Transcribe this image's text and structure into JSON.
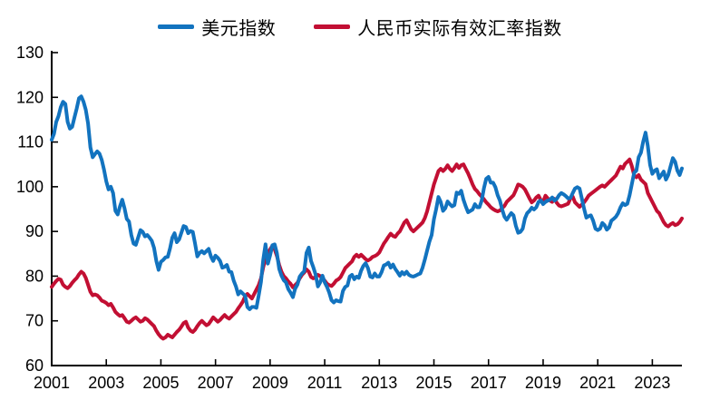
{
  "figure": {
    "background": "#ffffff"
  },
  "legend": {
    "position": "top-center",
    "entries": [
      {
        "label": "美元指数",
        "color": "#1273bf"
      },
      {
        "label": "人民币实际有效汇率指数",
        "color": "#c20f33"
      }
    ]
  },
  "axes": {
    "y_tick_labels": [
      "60",
      "70",
      "80",
      "90",
      "100",
      "110",
      "120",
      "130"
    ],
    "x_tick_labels": [
      "2001",
      "2003",
      "2005",
      "2007",
      "2009",
      "2011",
      "2013",
      "2015",
      "2017",
      "2019",
      "2021",
      "2023"
    ]
  },
  "chart_data": {
    "type": "line",
    "title": "",
    "xlabel": "",
    "ylabel": "",
    "frequency": "monthly",
    "x_start": "2001-01",
    "x_end": "2024-02",
    "ylim": [
      60,
      130
    ],
    "y_ticks": [
      60,
      70,
      80,
      90,
      100,
      110,
      120,
      130
    ],
    "x_tick_years": [
      2001,
      2003,
      2005,
      2007,
      2009,
      2011,
      2013,
      2015,
      2017,
      2019,
      2021,
      2023
    ],
    "grid": false,
    "legend_position": "top-center",
    "series": [
      {
        "name": "美元指数",
        "color": "#1273bf",
        "values": [
          110.5,
          111.8,
          114.5,
          115.8,
          117.8,
          119.0,
          118.5,
          114.5,
          113.0,
          113.4,
          115.5,
          117.5,
          119.8,
          120.2,
          119.0,
          117.2,
          114.2,
          108.8,
          106.6,
          107.3,
          107.9,
          107.4,
          106.0,
          103.8,
          101.2,
          99.4,
          100.0,
          98.6,
          94.6,
          93.8,
          95.6,
          97.1,
          95.2,
          92.8,
          92.2,
          89.2,
          87.3,
          87.0,
          88.6,
          90.3,
          89.9,
          88.9,
          89.2,
          88.6,
          87.9,
          86.3,
          83.4,
          81.4,
          83.2,
          83.6,
          84.2,
          84.3,
          86.2,
          88.6,
          89.6,
          87.6,
          88.2,
          89.7,
          91.2,
          91.0,
          89.6,
          90.1,
          89.9,
          87.3,
          84.4,
          85.2,
          85.6,
          85.1,
          85.6,
          86.1,
          84.4,
          83.4,
          84.6,
          84.1,
          83.4,
          81.9,
          82.1,
          82.5,
          81.0,
          80.9,
          79.0,
          77.7,
          75.9,
          76.6,
          76.1,
          75.6,
          73.1,
          72.6,
          73.1,
          73.1,
          72.9,
          75.7,
          78.7,
          83.7,
          87.1,
          82.8,
          84.7,
          86.9,
          87.1,
          85.1,
          81.6,
          80.1,
          79.1,
          78.6,
          77.1,
          76.3,
          75.3,
          77.2,
          78.1,
          79.9,
          80.6,
          81.1,
          85.2,
          86.4,
          83.4,
          82.0,
          80.4,
          77.7,
          78.6,
          80.1,
          78.6,
          77.6,
          76.3,
          74.6,
          74.1,
          74.6,
          74.4,
          74.3,
          76.7,
          77.6,
          77.9,
          79.9,
          80.3,
          79.3,
          79.9,
          79.6,
          81.2,
          82.3,
          82.9,
          81.8,
          79.9,
          79.7,
          80.6,
          79.9,
          79.9,
          80.9,
          82.4,
          82.6,
          83.0,
          81.9,
          82.6,
          81.6,
          80.9,
          80.1,
          80.9,
          80.4,
          81.0,
          80.3,
          80.0,
          79.9,
          80.1,
          80.4,
          80.6,
          81.9,
          83.7,
          85.7,
          87.7,
          89.2,
          92.7,
          95.0,
          97.7,
          96.6,
          94.6,
          95.2,
          96.7,
          96.1,
          95.6,
          95.9,
          98.7,
          98.4,
          99.1,
          97.1,
          95.6,
          94.3,
          94.6,
          94.9,
          96.1,
          95.4,
          95.4,
          96.9,
          99.7,
          101.8,
          102.2,
          100.9,
          100.9,
          99.9,
          98.1,
          96.9,
          94.9,
          93.3,
          92.6,
          93.4,
          94.1,
          93.6,
          91.3,
          89.7,
          89.9,
          90.6,
          92.9,
          94.1,
          94.6,
          95.3,
          94.9,
          95.4,
          96.6,
          96.9,
          96.1,
          96.6,
          96.9,
          97.1,
          97.6,
          96.9,
          97.3,
          98.1,
          98.6,
          98.3,
          97.9,
          97.4,
          97.5,
          98.6,
          99.6,
          99.9,
          99.6,
          97.4,
          95.1,
          93.1,
          93.4,
          93.6,
          92.4,
          90.6,
          90.3,
          90.6,
          91.9,
          91.4,
          90.4,
          90.9,
          92.4,
          92.8,
          93.3,
          94.1,
          95.4,
          96.3,
          95.9,
          96.2,
          98.1,
          100.6,
          103.1,
          103.6,
          106.6,
          107.6,
          110.1,
          112.1,
          109.1,
          104.9,
          102.9,
          103.6,
          103.9,
          101.9,
          102.6,
          103.4,
          101.6,
          102.6,
          104.6,
          106.4,
          105.6,
          103.6,
          102.6,
          104.1
        ]
      },
      {
        "name": "人民币实际有效汇率指数",
        "color": "#c20f33",
        "values": [
          77.6,
          78.3,
          78.9,
          79.4,
          79.2,
          78.1,
          77.6,
          77.3,
          77.8,
          78.5,
          79.1,
          79.6,
          80.4,
          81.0,
          80.6,
          79.6,
          78.1,
          76.5,
          75.7,
          75.9,
          75.7,
          75.2,
          74.5,
          74.3,
          74.0,
          73.5,
          73.8,
          73.0,
          72.0,
          71.5,
          71.1,
          71.3,
          70.6,
          69.8,
          69.6,
          70.0,
          70.5,
          70.8,
          70.3,
          69.8,
          70.0,
          70.6,
          70.3,
          69.8,
          69.3,
          68.8,
          67.8,
          67.0,
          66.4,
          66.0,
          66.3,
          66.9,
          66.6,
          66.3,
          66.9,
          67.5,
          68.0,
          68.7,
          69.5,
          69.8,
          68.5,
          67.8,
          67.5,
          68.0,
          68.8,
          69.5,
          70.0,
          69.5,
          69.0,
          69.3,
          70.0,
          70.8,
          70.3,
          69.8,
          70.2,
          70.8,
          71.3,
          70.8,
          70.5,
          71.0,
          71.5,
          72.0,
          72.8,
          73.5,
          74.3,
          75.5,
          76.0,
          75.5,
          75.0,
          76.0,
          77.0,
          78.0,
          79.5,
          82.0,
          84.0,
          85.0,
          86.0,
          86.8,
          86.0,
          84.5,
          82.5,
          81.0,
          80.0,
          79.5,
          78.8,
          78.3,
          77.5,
          78.0,
          78.5,
          79.5,
          80.3,
          80.8,
          81.5,
          81.0,
          79.8,
          79.5,
          79.8,
          80.3,
          80.0,
          79.3,
          79.0,
          78.3,
          78.0,
          77.8,
          78.3,
          79.0,
          79.3,
          79.8,
          80.8,
          81.8,
          82.3,
          82.8,
          83.3,
          84.3,
          84.8,
          84.3,
          84.8,
          84.3,
          83.8,
          83.5,
          83.8,
          84.3,
          84.5,
          84.8,
          85.3,
          86.3,
          87.3,
          88.0,
          88.8,
          89.5,
          89.0,
          88.8,
          89.5,
          90.0,
          91.0,
          92.0,
          92.5,
          91.5,
          90.5,
          90.0,
          90.5,
          91.0,
          91.5,
          92.0,
          93.0,
          94.5,
          96.5,
          98.5,
          100.5,
          102.0,
          103.5,
          104.0,
          103.5,
          104.0,
          104.8,
          104.0,
          103.5,
          104.2,
          105.0,
          104.2,
          104.8,
          105.0,
          104.0,
          103.0,
          101.8,
          100.5,
          99.5,
          99.0,
          98.3,
          97.8,
          97.2,
          96.5,
          96.0,
          95.4,
          95.0,
          94.7,
          94.5,
          94.7,
          95.2,
          95.7,
          96.6,
          97.1,
          97.6,
          98.1,
          99.2,
          100.5,
          100.3,
          100.0,
          99.4,
          98.4,
          97.4,
          96.5,
          96.9,
          97.6,
          98.0,
          97.0,
          96.6,
          98.0,
          97.4,
          96.9,
          96.6,
          97.3,
          96.4,
          95.8,
          95.6,
          95.8,
          96.0,
          96.2,
          97.4,
          97.8,
          96.5,
          96.0,
          95.5,
          96.0,
          96.5,
          97.2,
          98.0,
          98.4,
          98.8,
          99.2,
          99.6,
          100.0,
          100.3,
          100.0,
          100.5,
          101.0,
          101.5,
          102.0,
          102.5,
          103.5,
          104.5,
          104.1,
          105.1,
          105.6,
          106.1,
          104.6,
          102.6,
          102.1,
          102.6,
          101.6,
          101.1,
          100.6,
          98.6,
          97.6,
          96.6,
          95.6,
          94.6,
          94.1,
          93.1,
          92.1,
          91.4,
          91.1,
          91.6,
          91.9,
          91.4,
          91.6,
          92.1,
          92.9
        ]
      }
    ]
  }
}
